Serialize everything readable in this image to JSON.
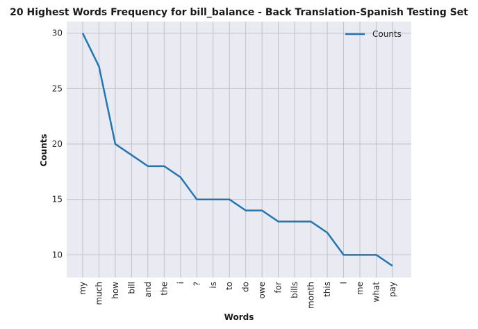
{
  "chart_data": {
    "type": "line",
    "title": "20 Highest Words Frequency for bill_balance - Back Translation-Spanish Testing Set",
    "xlabel": "Words",
    "ylabel": "Counts",
    "categories": [
      "my",
      "much",
      "how",
      "bill",
      "and",
      "the",
      "i",
      "?",
      "is",
      "to",
      "do",
      "owe",
      "for",
      "bills",
      "month",
      "this",
      "I",
      "me",
      "what",
      "pay"
    ],
    "series": [
      {
        "name": "Counts",
        "values": [
          30,
          27,
          20,
          19,
          18,
          18,
          17,
          15,
          15,
          15,
          14,
          14,
          13,
          13,
          13,
          12,
          10,
          10,
          10,
          9
        ]
      }
    ],
    "yticks": [
      10,
      15,
      20,
      25,
      30
    ],
    "ylim": [
      7.95,
      31.05
    ],
    "grid": true,
    "legend_position": "top-right",
    "colors": {
      "line": "#1f77b4",
      "plot_background": "#eaeaf2",
      "grid": "#c0c0c8"
    }
  }
}
